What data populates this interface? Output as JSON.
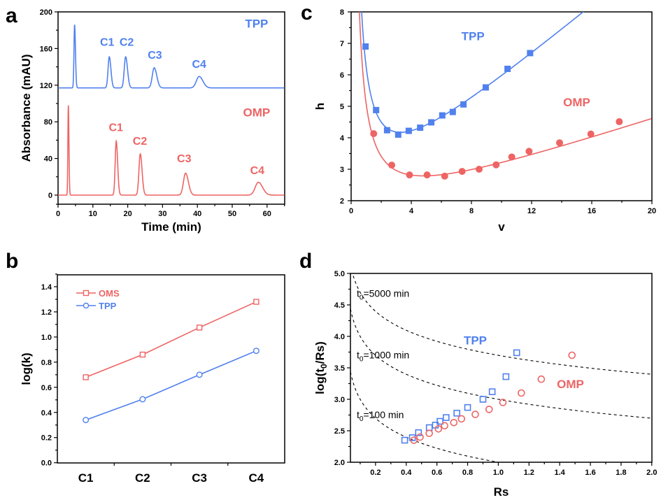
{
  "colors": {
    "blue": "#5081ee",
    "red": "#ee6464",
    "dash": "#000000"
  },
  "chart_data": [
    {
      "panel": "a",
      "type": "line",
      "title": "",
      "xlabel": "Time (min)",
      "ylabel": "Absorbance (mAU)",
      "xlim": [
        0,
        65
      ],
      "ylim": [
        -10,
        200
      ],
      "xticks": [
        0,
        10,
        20,
        30,
        40,
        50,
        60
      ],
      "yticks": [
        0,
        40,
        80,
        120,
        160,
        200
      ],
      "grid": false,
      "series": [
        {
          "name": "TPP",
          "color": "blue",
          "baseline": 117,
          "peaks": [
            {
              "label": "",
              "t": 4.75,
              "height": 186,
              "width": 0.18
            },
            {
              "label": "C1",
              "t": 14.7,
              "height": 151,
              "width": 0.35
            },
            {
              "label": "C2",
              "t": 19.4,
              "height": 151,
              "width": 0.4
            },
            {
              "label": "C3",
              "t": 27.6,
              "height": 139,
              "width": 0.55
            },
            {
              "label": "C4",
              "t": 40.5,
              "height": 129.5,
              "width": 0.8
            }
          ]
        },
        {
          "name": "OMP",
          "color": "red",
          "baseline": 0,
          "peaks": [
            {
              "label": "",
              "t": 2.95,
              "height": 98,
              "width": 0.13
            },
            {
              "label": "C1",
              "t": 16.7,
              "height": 59,
              "width": 0.3
            },
            {
              "label": "C2",
              "t": 23.6,
              "height": 45,
              "width": 0.38
            },
            {
              "label": "C3",
              "t": 36.6,
              "height": 24,
              "width": 0.6
            },
            {
              "label": "C4",
              "t": 57.5,
              "height": 14,
              "width": 0.9
            }
          ]
        }
      ],
      "annotations": [
        {
          "text": "TPP",
          "color": "blue",
          "x": 57,
          "y": 183
        },
        {
          "text": "C1",
          "color": "blue",
          "x": 14.1,
          "y": 163
        },
        {
          "text": "C2",
          "color": "blue",
          "x": 19.7,
          "y": 163
        },
        {
          "text": "C3",
          "color": "blue",
          "x": 27.8,
          "y": 149
        },
        {
          "text": "C4",
          "color": "blue",
          "x": 40.5,
          "y": 139
        },
        {
          "text": "OMP",
          "color": "red",
          "x": 57,
          "y": 86
        },
        {
          "text": "C1",
          "color": "red",
          "x": 16.6,
          "y": 70
        },
        {
          "text": "C2",
          "color": "red",
          "x": 23.5,
          "y": 55
        },
        {
          "text": "C3",
          "color": "red",
          "x": 36.2,
          "y": 36
        },
        {
          "text": "C4",
          "color": "red",
          "x": 57.2,
          "y": 23
        }
      ]
    },
    {
      "panel": "b",
      "type": "line",
      "title": "",
      "xlabel": "",
      "ylabel": "log(k)",
      "categories": [
        "C1",
        "C2",
        "C3",
        "C4"
      ],
      "ylim": [
        0,
        1.5
      ],
      "yticks": [
        "0.0",
        "0.2",
        "0.4",
        "0.6",
        "0.8",
        "1.0",
        "1.2",
        "1.4"
      ],
      "grid": false,
      "legend": {
        "placement": "top-left",
        "entries": [
          "OMS",
          "TPP"
        ]
      },
      "series": [
        {
          "name": "OMS",
          "color": "red",
          "marker": "open-square",
          "values": [
            0.68,
            0.86,
            1.075,
            1.28
          ]
        },
        {
          "name": "TPP",
          "color": "blue",
          "marker": "open-circle",
          "values": [
            0.34,
            0.505,
            0.7,
            0.89
          ]
        }
      ]
    },
    {
      "panel": "c",
      "type": "scatter",
      "title": "",
      "xlabel": "v",
      "ylabel": "h",
      "xlim": [
        0,
        20
      ],
      "ylim": [
        2,
        8
      ],
      "xticks": [
        0,
        4,
        8,
        12,
        16,
        20
      ],
      "yticks": [
        2,
        3,
        4,
        5,
        6,
        7,
        8
      ],
      "grid": false,
      "series": [
        {
          "name": "TPP",
          "color": "blue",
          "marker": "filled-square",
          "x": [
            0.96,
            1.66,
            2.39,
            3.13,
            3.83,
            4.59,
            5.33,
            6.06,
            6.76,
            7.47,
            8.95,
            10.4,
            11.9
          ],
          "y": [
            6.9,
            4.88,
            4.24,
            4.1,
            4.22,
            4.32,
            4.49,
            4.71,
            4.82,
            5.06,
            5.6,
            6.19,
            6.69
          ],
          "fit": {
            "model": "h = A/v + B + C*v",
            "A": 4.3,
            "B": 1.55,
            "C": 0.4
          }
        },
        {
          "name": "OMP",
          "color": "red",
          "marker": "filled-circle",
          "x": [
            1.5,
            2.7,
            3.88,
            5.05,
            6.22,
            7.38,
            8.51,
            9.64,
            10.68,
            11.83,
            13.86,
            15.94,
            17.83
          ],
          "y": [
            4.13,
            3.13,
            2.82,
            2.82,
            2.78,
            2.93,
            3.0,
            3.14,
            3.39,
            3.57,
            3.84,
            4.12,
            4.51
          ],
          "fit": {
            "model": "h = A/v + B + C*v",
            "A": 3.65,
            "B": 1.27,
            "C": 0.158
          }
        }
      ],
      "annotations": [
        {
          "text": "TPP",
          "color": "blue",
          "x": 8.1,
          "y": 7.1
        },
        {
          "text": "OMP",
          "color": "red",
          "x": 15.0,
          "y": 5.0
        }
      ]
    },
    {
      "panel": "d",
      "type": "scatter",
      "title": "",
      "xlabel": "Rs",
      "ylabel": "log(t0/Rs)",
      "xlim": [
        0.036,
        2.0
      ],
      "ylim": [
        2.0,
        5.0
      ],
      "xticks": [
        "0.2",
        "0.4",
        "0.6",
        "0.8",
        "1.0",
        "1.2",
        "1.4",
        "1.6",
        "1.8",
        "2.0"
      ],
      "yticks": [
        "2.0",
        "2.5",
        "3.0",
        "3.5",
        "4.0",
        "4.5",
        "5.0"
      ],
      "grid": false,
      "series": [
        {
          "name": "TPP",
          "color": "blue",
          "marker": "open-square",
          "x": [
            0.39,
            0.44,
            0.48,
            0.55,
            0.59,
            0.62,
            0.66,
            0.73,
            0.8,
            0.9,
            0.96,
            1.05,
            1.12
          ],
          "y": [
            2.35,
            2.39,
            2.47,
            2.55,
            2.59,
            2.65,
            2.71,
            2.78,
            2.87,
            3.0,
            3.12,
            3.36,
            3.74
          ]
        },
        {
          "name": "OMP",
          "color": "red",
          "marker": "open-circle",
          "x": [
            0.45,
            0.49,
            0.55,
            0.61,
            0.65,
            0.71,
            0.76,
            0.85,
            0.94,
            1.03,
            1.15,
            1.28,
            1.48
          ],
          "y": [
            2.35,
            2.4,
            2.46,
            2.53,
            2.58,
            2.63,
            2.69,
            2.76,
            2.84,
            2.95,
            3.1,
            3.32,
            3.7
          ]
        }
      ],
      "reference_curves": [
        {
          "t0": 5000,
          "label_pre": "t",
          "label_sub": "0",
          "label_post": "=5000 min",
          "model": "y = log10(t0/Rs)"
        },
        {
          "t0": 1000,
          "label_pre": "t",
          "label_sub": "0",
          "label_post": "=1000 min",
          "model": "y = log10(t0/Rs)"
        },
        {
          "t0": 100,
          "label_pre": "t",
          "label_sub": "0",
          "label_post": "=100 min",
          "model": "y = log10(t0/Rs)"
        }
      ],
      "ylabel_parts": {
        "pre": "log(t",
        "sub": "0",
        "post": "/Rs)"
      },
      "annotations": [
        {
          "text": "TPP",
          "color": "blue",
          "x": 0.85,
          "y": 3.87
        },
        {
          "text": "OMP",
          "color": "red",
          "x": 1.47,
          "y": 3.18
        }
      ]
    }
  ],
  "panel_labels": [
    "a",
    "b",
    "c",
    "d"
  ]
}
